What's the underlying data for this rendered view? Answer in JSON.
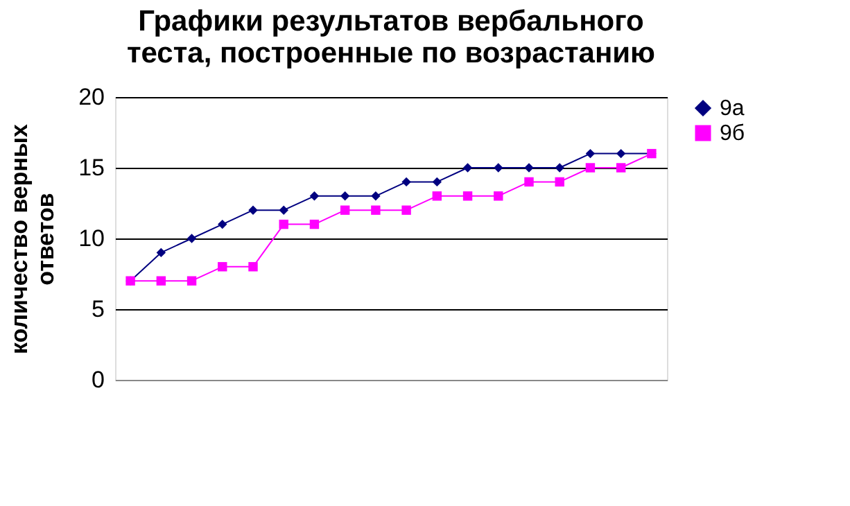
{
  "chart_data": {
    "type": "line",
    "title": [
      "Графики результатов вербального",
      "теста, построенные по возрастанию"
    ],
    "ylabel": [
      "количество верных",
      "ответов"
    ],
    "categories": [
      null,
      null,
      null,
      null,
      null,
      null,
      null,
      null,
      null,
      null,
      null,
      null,
      null,
      null,
      null,
      null,
      null,
      null
    ],
    "series": [
      {
        "name": "9а",
        "color": "#000080",
        "marker": "diamond",
        "values": [
          7,
          9,
          10,
          11,
          12,
          12,
          13,
          13,
          13,
          14,
          14,
          15,
          15,
          15,
          15,
          16,
          16,
          16
        ]
      },
      {
        "name": "9б",
        "color": "#ff00ff",
        "marker": "square",
        "values": [
          7,
          7,
          7,
          8,
          8,
          11,
          11,
          12,
          12,
          12,
          13,
          13,
          13,
          14,
          14,
          15,
          15,
          16
        ]
      }
    ],
    "ylim": [
      0,
      20
    ],
    "yticks": [
      0,
      5,
      10,
      15,
      20
    ],
    "grid": "y",
    "legend": "right",
    "line_style": "solid"
  }
}
